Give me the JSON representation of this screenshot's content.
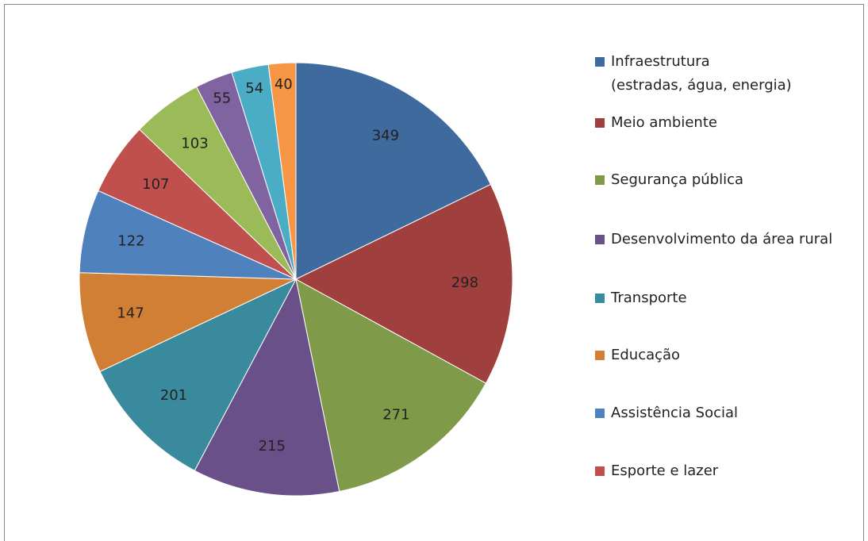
{
  "chart_data": {
    "type": "pie",
    "categories": [
      "Infraestrutura\n(estradas, água, energia)",
      "Meio ambiente",
      "Segurança pública",
      "Desenvolvimento da área rural",
      "Transporte",
      "Educação",
      "Assistência Social",
      "Esporte e lazer",
      null,
      null,
      null,
      null
    ],
    "values": [
      349,
      298,
      271,
      215,
      201,
      147,
      122,
      107,
      103,
      55,
      54,
      40
    ],
    "colors": [
      "#3f6a9e",
      "#a0403e",
      "#7f9a48",
      "#6a5088",
      "#3a8a9e",
      "#d07f35",
      "#4f81bd",
      "#c0504d",
      "#9bbb59",
      "#8064a2",
      "#4bacc6",
      "#f79646"
    ],
    "legend": "right"
  }
}
